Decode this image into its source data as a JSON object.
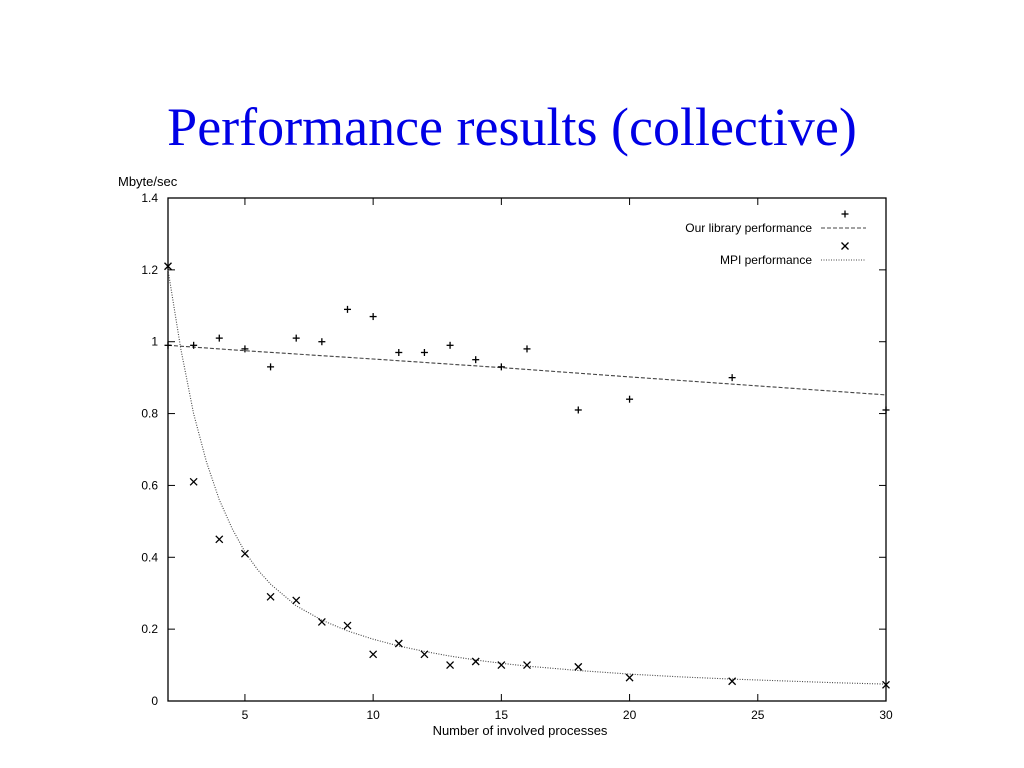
{
  "slide": {
    "title": "Performance results (collective)"
  },
  "colors": {
    "title": "#0000e6",
    "ink": "#000000",
    "fit_line": "#444444"
  },
  "chart_data": {
    "type": "scatter",
    "title": "",
    "xlabel": "Number of involved processes",
    "ylabel": "Mbyte/sec",
    "xlim": [
      2,
      30
    ],
    "ylim": [
      0,
      1.4
    ],
    "xticks": [
      5,
      10,
      15,
      20,
      25,
      30
    ],
    "yticks": [
      0,
      0.2,
      0.4,
      0.6,
      0.8,
      1,
      1.2,
      1.4
    ],
    "legend_position": "top-right",
    "grid": false,
    "series": [
      {
        "name": "Our library performance",
        "marker": "plus",
        "fit_style": "dashed",
        "x": [
          2,
          3,
          4,
          5,
          6,
          7,
          8,
          9,
          10,
          11,
          12,
          13,
          14,
          15,
          16,
          18,
          20,
          24,
          30
        ],
        "y": [
          0.99,
          0.99,
          1.01,
          0.98,
          0.93,
          1.01,
          1.0,
          1.09,
          1.07,
          0.97,
          0.97,
          0.99,
          0.95,
          0.93,
          0.98,
          0.81,
          0.84,
          0.9,
          0.81
        ],
        "fit": {
          "x": [
            2,
            5,
            10,
            15,
            20,
            25,
            30
          ],
          "y": [
            0.99,
            0.975,
            0.952,
            0.928,
            0.902,
            0.877,
            0.852
          ]
        }
      },
      {
        "name": "MPI performance",
        "marker": "cross",
        "fit_style": "dotted",
        "x": [
          2,
          3,
          4,
          5,
          6,
          7,
          8,
          9,
          10,
          11,
          12,
          13,
          14,
          15,
          16,
          18,
          20,
          24,
          30
        ],
        "y": [
          1.21,
          0.61,
          0.45,
          0.41,
          0.29,
          0.28,
          0.22,
          0.21,
          0.13,
          0.16,
          0.13,
          0.1,
          0.11,
          0.1,
          0.1,
          0.095,
          0.065,
          0.055,
          0.045
        ],
        "fit": {
          "x": [
            2,
            2.5,
            3,
            3.5,
            4,
            4.5,
            5,
            5.5,
            6,
            7,
            8,
            9,
            10,
            11,
            12,
            13,
            14,
            15,
            16,
            18,
            20,
            22,
            24,
            26,
            28,
            30
          ],
          "y": [
            1.2,
            0.98,
            0.8,
            0.665,
            0.56,
            0.48,
            0.415,
            0.365,
            0.325,
            0.265,
            0.225,
            0.195,
            0.172,
            0.153,
            0.138,
            0.125,
            0.114,
            0.105,
            0.097,
            0.085,
            0.075,
            0.067,
            0.061,
            0.056,
            0.051,
            0.047
          ]
        }
      }
    ]
  }
}
